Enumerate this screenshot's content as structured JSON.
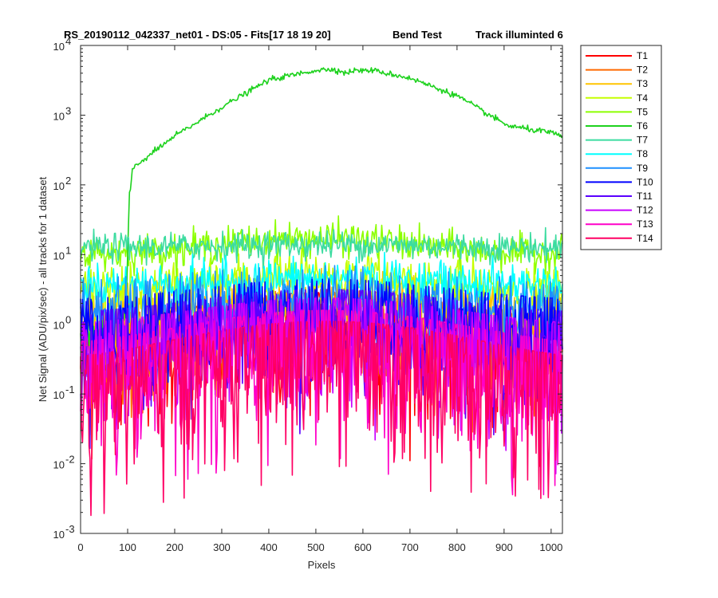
{
  "chart_data": {
    "type": "line",
    "title_parts": [
      "RS_20190112_042337_net01 - DS:05 - Fits[17  18  19  20]",
      "Bend Test",
      "Track illuminted 6"
    ],
    "xlabel": "Pixels",
    "ylabel": "Net Signal (ADU/pix/sec) - all tracks for 1 dataset",
    "xlim": [
      0,
      1024
    ],
    "ylim": [
      0.001,
      10000
    ],
    "yscale": "log",
    "grid": false,
    "legend_position": "outside-right",
    "xticks": [
      "0",
      "100",
      "200",
      "300",
      "400",
      "500",
      "600",
      "700",
      "800",
      "900",
      "1000"
    ],
    "yticks": [
      {
        "base": "10",
        "exp": "-3"
      },
      {
        "base": "10",
        "exp": "-2"
      },
      {
        "base": "10",
        "exp": "-1"
      },
      {
        "base": "10",
        "exp": "0"
      },
      {
        "base": "10",
        "exp": "1"
      },
      {
        "base": "10",
        "exp": "2"
      },
      {
        "base": "10",
        "exp": "3"
      },
      {
        "base": "10",
        "exp": "4"
      }
    ],
    "series": [
      {
        "name": "T1",
        "color": "#ff0000",
        "peak": 0.9,
        "center": 512,
        "width": 430,
        "edge": 0.35,
        "noise": 0.55
      },
      {
        "name": "T2",
        "color": "#ff6a00",
        "peak": 1.0,
        "center": 510,
        "width": 440,
        "edge": 0.35,
        "noise": 0.45
      },
      {
        "name": "T3",
        "color": "#ffc400",
        "peak": 2.0,
        "center": 500,
        "width": 430,
        "edge": 0.55,
        "noise": 0.3
      },
      {
        "name": "T4",
        "color": "#c6ff00",
        "peak": 4.8,
        "center": 500,
        "width": 400,
        "edge": 0.6,
        "noise": 0.18
      },
      {
        "name": "T5",
        "color": "#8cff00",
        "peak": 17.0,
        "center": 500,
        "width": 380,
        "edge": 0.6,
        "noise": 0.12
      },
      {
        "name": "T6",
        "color": "#1ed21e",
        "peak": 4600,
        "center": 540,
        "width": 390,
        "edge": 0.7,
        "noise": 0.02,
        "points": [
          [
            0,
            0.7
          ],
          [
            50,
            0.8
          ],
          [
            90,
            1.0
          ],
          [
            98,
            2.0
          ],
          [
            104,
            60
          ],
          [
            110,
            170
          ],
          [
            130,
            220
          ],
          [
            200,
            500
          ],
          [
            300,
            1300
          ],
          [
            400,
            3200
          ],
          [
            500,
            4400
          ],
          [
            540,
            4600
          ],
          [
            560,
            4000
          ],
          [
            580,
            4350
          ],
          [
            620,
            4400
          ],
          [
            700,
            3400
          ],
          [
            800,
            1900
          ],
          [
            880,
            900
          ],
          [
            910,
            700
          ],
          [
            1000,
            560
          ],
          [
            1024,
            480
          ]
        ]
      },
      {
        "name": "T7",
        "color": "#3cdca0",
        "peak": 14.0,
        "center": 520,
        "width": 400,
        "edge": 0.9,
        "noise": 0.1
      },
      {
        "name": "T8",
        "color": "#00ffff",
        "peak": 4.5,
        "center": 520,
        "width": 420,
        "edge": 0.8,
        "noise": 0.15
      },
      {
        "name": "T9",
        "color": "#1e90ff",
        "peak": 2.2,
        "center": 520,
        "width": 440,
        "edge": 0.65,
        "noise": 0.25
      },
      {
        "name": "T10",
        "color": "#0000ff",
        "peak": 1.4,
        "center": 520,
        "width": 450,
        "edge": 0.5,
        "noise": 0.4
      },
      {
        "name": "T11",
        "color": "#5a00ff",
        "peak": 1.0,
        "center": 520,
        "width": 460,
        "edge": 0.45,
        "noise": 0.5
      },
      {
        "name": "T12",
        "color": "#c800ff",
        "peak": 0.75,
        "center": 520,
        "width": 470,
        "edge": 0.4,
        "noise": 0.6
      },
      {
        "name": "T13",
        "color": "#ff00c8",
        "peak": 0.5,
        "center": 520,
        "width": 480,
        "edge": 0.3,
        "noise": 0.7
      },
      {
        "name": "T14",
        "color": "#ff0064",
        "peak": 0.35,
        "center": 520,
        "width": 490,
        "edge": 0.25,
        "noise": 0.75
      }
    ]
  }
}
